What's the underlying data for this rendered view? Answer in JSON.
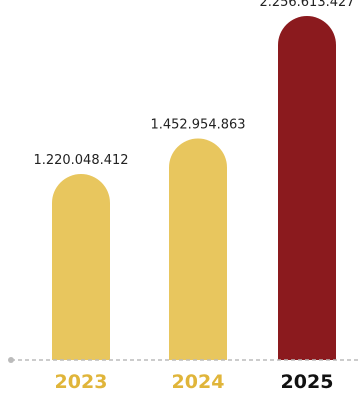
{
  "colors": {
    "bar_default": "#E8C65E",
    "bar_highlight": "#8B1A1E",
    "label_default": "#E0B53A",
    "label_highlight": "#111111",
    "baseline": "#BBBBBB",
    "baseline_dot": "#BBBBBB"
  },
  "chart_data": {
    "type": "bar",
    "categories": [
      "2023",
      "2024",
      "2025"
    ],
    "values": [
      1220048412,
      1452954863,
      2256613427
    ],
    "value_labels": [
      "1.220.048.412",
      "1.452.954.863",
      "2.256.613.427"
    ],
    "highlight_category": "2025",
    "grid": false,
    "ylim": [
      0,
      2256613427
    ]
  }
}
